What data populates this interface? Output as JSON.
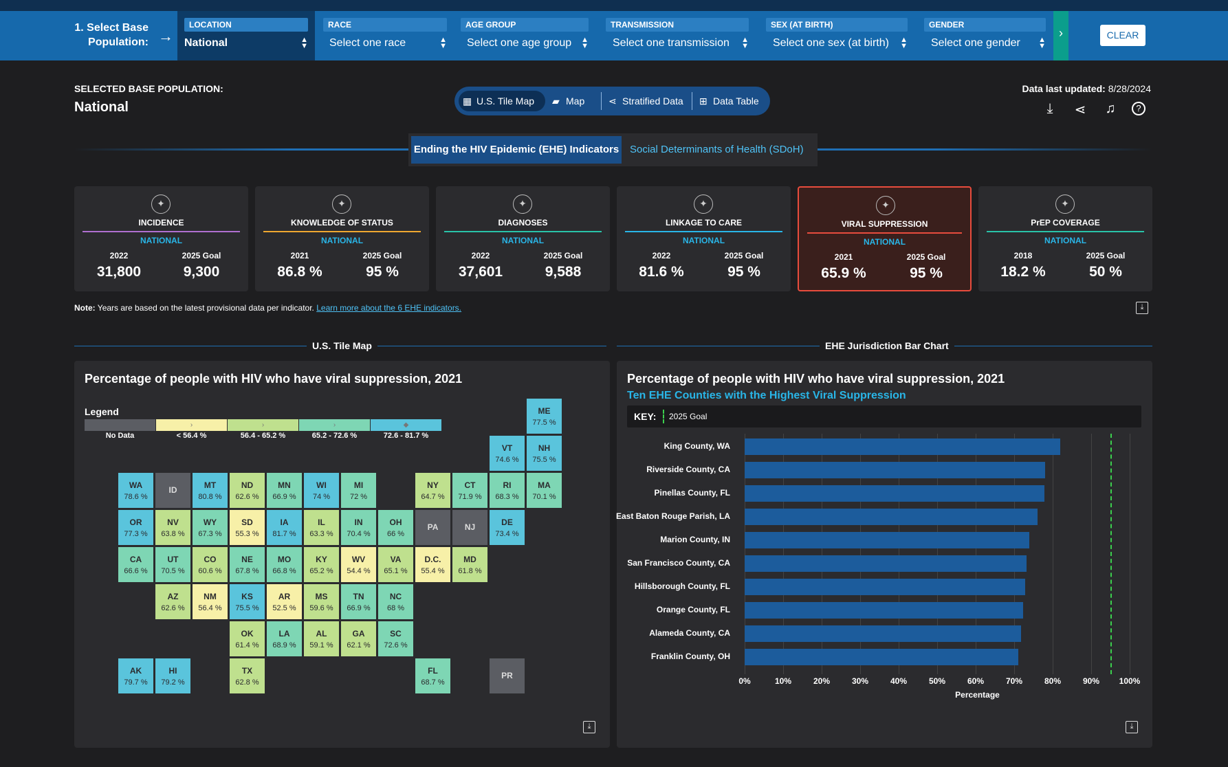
{
  "filters": {
    "step_label": "1. Select Base Population:",
    "items": [
      {
        "label": "LOCATION",
        "value": "National"
      },
      {
        "label": "RACE",
        "value": "Select one race"
      },
      {
        "label": "AGE GROUP",
        "value": "Select one age group"
      },
      {
        "label": "TRANSMISSION",
        "value": "Select one transmission"
      },
      {
        "label": "SEX (AT BIRTH)",
        "value": "Select one sex (at birth)"
      },
      {
        "label": "GENDER",
        "value": "Select one gender"
      }
    ],
    "clear_label": "CLEAR"
  },
  "header": {
    "selected_label": "SELECTED BASE POPULATION:",
    "selected_value": "National",
    "updated_label": "Data last updated:",
    "updated_value": "8/28/2024"
  },
  "view_tabs": [
    "U.S. Tile Map",
    "Map",
    "Stratified Data",
    "Data Table"
  ],
  "sub_tabs": [
    "Ending the HIV Epidemic (EHE) Indicators",
    "Social Determinants of Health (SDoH)"
  ],
  "cards": [
    {
      "title": "INCIDENCE",
      "geo": "NATIONAL",
      "year": "2022",
      "value": "31,800",
      "goal_label": "2025 Goal",
      "goal": "9,300",
      "color": "#b06fd0",
      "icon": "incidence-icon"
    },
    {
      "title": "KNOWLEDGE OF STATUS",
      "geo": "NATIONAL",
      "year": "2021",
      "value": "86.8 %",
      "goal_label": "2025 Goal",
      "goal": "95 %",
      "color": "#f0a830",
      "icon": "lightbulb-icon"
    },
    {
      "title": "DIAGNOSES",
      "geo": "NATIONAL",
      "year": "2022",
      "value": "37,601",
      "goal_label": "2025 Goal",
      "goal": "9,588",
      "color": "#29c4a9",
      "icon": "clipboard-icon"
    },
    {
      "title": "LINKAGE TO CARE",
      "geo": "NATIONAL",
      "year": "2022",
      "value": "81.6 %",
      "goal_label": "2025 Goal",
      "goal": "95 %",
      "color": "#29b6e8",
      "icon": "caduceus-icon"
    },
    {
      "title": "VIRAL SUPPRESSION",
      "geo": "NATIONAL",
      "year": "2021",
      "value": "65.9 %",
      "goal_label": "2025 Goal",
      "goal": "95 %",
      "color": "#e84c3d",
      "icon": "virus-icon"
    },
    {
      "title": "PrEP COVERAGE",
      "geo": "NATIONAL",
      "year": "2018",
      "value": "18.2 %",
      "goal_label": "2025 Goal",
      "goal": "50 %",
      "color": "#29c4a9",
      "icon": "pill-bottle-icon"
    }
  ],
  "note": {
    "bold": "Note:",
    "text": "Years are based on the latest provisional data per indicator.",
    "link": "Learn more about the 6 EHE indicators."
  },
  "tile_map": {
    "section_title": "U.S. Tile Map",
    "title": "Percentage of people with HIV who have viral suppression, 2021",
    "legend_title": "Legend",
    "legend": [
      {
        "label": "No Data",
        "color": "#5b5d63",
        "symbol": ""
      },
      {
        "label": "< 56.4 %",
        "color": "#f7f0a8",
        "symbol": "›"
      },
      {
        "label": "56.4 - 65.2 %",
        "color": "#bfe08e",
        "symbol": "›"
      },
      {
        "label": "65.2 - 72.6 %",
        "color": "#7ed6b4",
        "symbol": "›"
      },
      {
        "label": "72.6 - 81.7 %",
        "color": "#5ac4dc",
        "symbol": "◆"
      }
    ],
    "tiles": [
      {
        "ab": "ME",
        "v": "77.5 %",
        "c": 4,
        "row": 0,
        "col": 12
      },
      {
        "ab": "VT",
        "v": "74.6 %",
        "c": 4,
        "row": 1,
        "col": 11
      },
      {
        "ab": "NH",
        "v": "75.5 %",
        "c": 4,
        "row": 1,
        "col": 12
      },
      {
        "ab": "WA",
        "v": "78.6 %",
        "c": 4,
        "row": 2,
        "col": 1
      },
      {
        "ab": "ID",
        "v": "",
        "c": 0,
        "row": 2,
        "col": 2
      },
      {
        "ab": "MT",
        "v": "80.8 %",
        "c": 4,
        "row": 2,
        "col": 3
      },
      {
        "ab": "ND",
        "v": "62.6 %",
        "c": 2,
        "row": 2,
        "col": 4
      },
      {
        "ab": "MN",
        "v": "66.9 %",
        "c": 3,
        "row": 2,
        "col": 5
      },
      {
        "ab": "WI",
        "v": "74 %",
        "c": 4,
        "row": 2,
        "col": 6
      },
      {
        "ab": "MI",
        "v": "72 %",
        "c": 3,
        "row": 2,
        "col": 7
      },
      {
        "ab": "NY",
        "v": "64.7 %",
        "c": 2,
        "row": 2,
        "col": 9
      },
      {
        "ab": "CT",
        "v": "71.9 %",
        "c": 3,
        "row": 2,
        "col": 10
      },
      {
        "ab": "RI",
        "v": "68.3 %",
        "c": 3,
        "row": 2,
        "col": 11
      },
      {
        "ab": "MA",
        "v": "70.1 %",
        "c": 3,
        "row": 2,
        "col": 12
      },
      {
        "ab": "OR",
        "v": "77.3 %",
        "c": 4,
        "row": 3,
        "col": 1
      },
      {
        "ab": "NV",
        "v": "63.8 %",
        "c": 2,
        "row": 3,
        "col": 2
      },
      {
        "ab": "WY",
        "v": "67.3 %",
        "c": 3,
        "row": 3,
        "col": 3
      },
      {
        "ab": "SD",
        "v": "55.3 %",
        "c": 1,
        "row": 3,
        "col": 4
      },
      {
        "ab": "IA",
        "v": "81.7 %",
        "c": 4,
        "row": 3,
        "col": 5
      },
      {
        "ab": "IL",
        "v": "63.3 %",
        "c": 2,
        "row": 3,
        "col": 6
      },
      {
        "ab": "IN",
        "v": "70.4 %",
        "c": 3,
        "row": 3,
        "col": 7
      },
      {
        "ab": "OH",
        "v": "66 %",
        "c": 3,
        "row": 3,
        "col": 8
      },
      {
        "ab": "PA",
        "v": "",
        "c": 0,
        "row": 3,
        "col": 9
      },
      {
        "ab": "NJ",
        "v": "",
        "c": 0,
        "row": 3,
        "col": 10
      },
      {
        "ab": "DE",
        "v": "73.4 %",
        "c": 4,
        "row": 3,
        "col": 11
      },
      {
        "ab": "CA",
        "v": "66.6 %",
        "c": 3,
        "row": 4,
        "col": 1
      },
      {
        "ab": "UT",
        "v": "70.5 %",
        "c": 3,
        "row": 4,
        "col": 2
      },
      {
        "ab": "CO",
        "v": "60.6 %",
        "c": 2,
        "row": 4,
        "col": 3
      },
      {
        "ab": "NE",
        "v": "67.8 %",
        "c": 3,
        "row": 4,
        "col": 4
      },
      {
        "ab": "MO",
        "v": "66.8 %",
        "c": 3,
        "row": 4,
        "col": 5
      },
      {
        "ab": "KY",
        "v": "65.2 %",
        "c": 2,
        "row": 4,
        "col": 6
      },
      {
        "ab": "WV",
        "v": "54.4 %",
        "c": 1,
        "row": 4,
        "col": 7
      },
      {
        "ab": "VA",
        "v": "65.1 %",
        "c": 2,
        "row": 4,
        "col": 8
      },
      {
        "ab": "D.C.",
        "v": "55.4 %",
        "c": 1,
        "row": 4,
        "col": 9
      },
      {
        "ab": "MD",
        "v": "61.8 %",
        "c": 2,
        "row": 4,
        "col": 10
      },
      {
        "ab": "AZ",
        "v": "62.6 %",
        "c": 2,
        "row": 5,
        "col": 2
      },
      {
        "ab": "NM",
        "v": "56.4 %",
        "c": 1,
        "row": 5,
        "col": 3
      },
      {
        "ab": "KS",
        "v": "75.5 %",
        "c": 4,
        "row": 5,
        "col": 4
      },
      {
        "ab": "AR",
        "v": "52.5 %",
        "c": 1,
        "row": 5,
        "col": 5
      },
      {
        "ab": "MS",
        "v": "59.6 %",
        "c": 2,
        "row": 5,
        "col": 6
      },
      {
        "ab": "TN",
        "v": "66.9 %",
        "c": 3,
        "row": 5,
        "col": 7
      },
      {
        "ab": "NC",
        "v": "68 %",
        "c": 3,
        "row": 5,
        "col": 8
      },
      {
        "ab": "OK",
        "v": "61.4 %",
        "c": 2,
        "row": 6,
        "col": 4
      },
      {
        "ab": "LA",
        "v": "68.9 %",
        "c": 3,
        "row": 6,
        "col": 5
      },
      {
        "ab": "AL",
        "v": "59.1 %",
        "c": 2,
        "row": 6,
        "col": 6
      },
      {
        "ab": "GA",
        "v": "62.1 %",
        "c": 2,
        "row": 6,
        "col": 7
      },
      {
        "ab": "SC",
        "v": "72.6 %",
        "c": 3,
        "row": 6,
        "col": 8
      },
      {
        "ab": "AK",
        "v": "79.7 %",
        "c": 4,
        "row": 7,
        "col": 1
      },
      {
        "ab": "HI",
        "v": "79.2 %",
        "c": 4,
        "row": 7,
        "col": 2
      },
      {
        "ab": "TX",
        "v": "62.8 %",
        "c": 2,
        "row": 7,
        "col": 4
      },
      {
        "ab": "FL",
        "v": "68.7 %",
        "c": 3,
        "row": 7,
        "col": 9
      },
      {
        "ab": "PR",
        "v": "",
        "c": 0,
        "row": 7,
        "col": 11
      }
    ]
  },
  "bar_chart_section": "EHE Jurisdiction Bar Chart",
  "chart_data": {
    "type": "bar",
    "orientation": "horizontal",
    "title": "Percentage of people with HIV who have viral suppression, 2021",
    "subtitle": "Ten EHE Counties with the Highest Viral Suppression",
    "key_label": "KEY:",
    "goal_label": "2025 Goal",
    "goal_value": 95,
    "categories": [
      "King County, WA",
      "Riverside County, CA",
      "Pinellas County, FL",
      "East Baton Rouge Parish, LA",
      "Marion County, IN",
      "San Francisco County, CA",
      "Hillsborough County, FL",
      "Orange County, FL",
      "Alameda County, CA",
      "Franklin County, OH"
    ],
    "values": [
      82,
      78,
      77.8,
      76,
      74,
      73.3,
      72.8,
      72.3,
      71.8,
      71
    ],
    "xlabel": "Percentage",
    "xlim": [
      0,
      100
    ],
    "xticks": [
      "0%",
      "10%",
      "20%",
      "30%",
      "40%",
      "50%",
      "60%",
      "70%",
      "80%",
      "90%",
      "100%"
    ],
    "bar_color": "#1c5c9c"
  }
}
